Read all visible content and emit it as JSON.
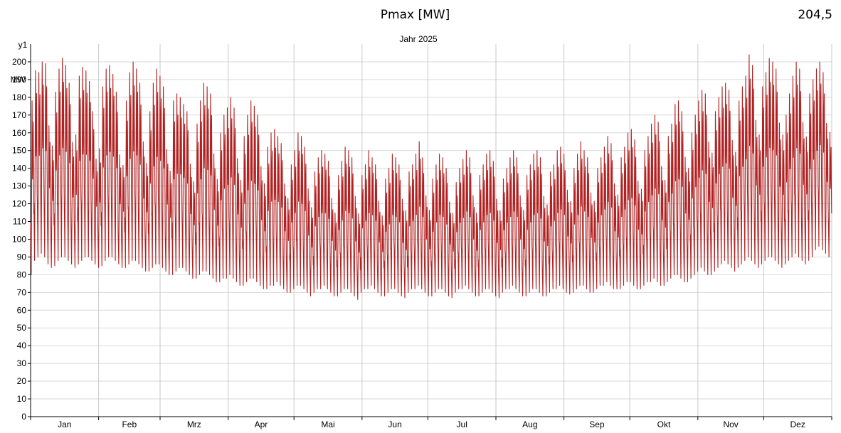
{
  "header": {
    "title": "Pmax [MW]",
    "max_value": "204,5"
  },
  "chart_data": {
    "type": "line",
    "title": "Jahr 2025",
    "y_axis_name": "y1",
    "y_unit": "MW",
    "ylim": [
      0,
      210
    ],
    "y_ticks": [
      0,
      10,
      20,
      30,
      40,
      50,
      60,
      70,
      80,
      90,
      100,
      110,
      120,
      130,
      140,
      150,
      160,
      170,
      180,
      190,
      200
    ],
    "x_ticks": [
      "Jan",
      "Feb",
      "Mrz",
      "Apr",
      "Mai",
      "Jun",
      "Jul",
      "Aug",
      "Sep",
      "Okt",
      "Nov",
      "Dez"
    ],
    "grid": true,
    "series": [
      {
        "color": "#b22222",
        "resolution": "hourly (approximated as daily min/max envelope)",
        "daily_max": [
          178,
          195,
          194,
          200,
          199,
          186,
          172,
          183,
          196,
          202,
          198,
          188,
          174,
          180,
          192,
          197,
          195,
          189,
          172,
          162,
          170,
          186,
          196,
          198,
          193,
          183,
          165,
          158,
          178,
          194,
          200,
          196,
          188,
          175,
          160,
          172,
          188,
          196,
          192,
          186,
          170,
          155,
          178,
          182,
          180,
          176,
          172,
          160,
          148,
          165,
          178,
          188,
          186,
          182,
          168,
          150,
          160,
          170,
          174,
          180,
          174,
          165,
          150,
          158,
          170,
          178,
          175,
          170,
          160,
          148,
          152,
          160,
          162,
          158,
          154,
          148,
          138,
          142,
          150,
          160,
          158,
          152,
          145,
          132,
          138,
          146,
          150,
          148,
          144,
          138,
          128,
          136,
          144,
          152,
          150,
          146,
          140,
          128,
          136,
          142,
          150,
          146,
          142,
          136,
          126,
          134,
          140,
          148,
          146,
          142,
          138,
          130,
          138,
          142,
          148,
          155,
          146,
          140,
          130,
          134,
          142,
          148,
          146,
          140,
          136,
          128,
          132,
          140,
          145,
          150,
          146,
          140,
          128,
          136,
          142,
          148,
          150,
          144,
          138,
          130,
          134,
          140,
          146,
          150,
          146,
          140,
          130,
          136,
          142,
          148,
          150,
          146,
          140,
          134,
          138,
          142,
          150,
          152,
          148,
          144,
          136,
          140,
          148,
          155,
          150,
          146,
          142,
          136,
          140,
          146,
          152,
          158,
          154,
          148,
          140,
          146,
          152,
          160,
          162,
          156,
          150,
          144,
          150,
          158,
          165,
          170,
          166,
          160,
          150,
          158,
          165,
          176,
          178,
          172,
          166,
          158,
          160,
          170,
          178,
          184,
          182,
          176,
          168,
          172,
          180,
          186,
          188,
          184,
          176,
          168,
          178,
          186,
          192,
          204,
          198,
          190,
          180,
          186,
          194,
          202,
          200,
          196,
          188,
          180,
          170,
          182,
          192,
          200,
          196,
          188,
          178,
          182,
          190,
          196,
          200,
          194,
          186,
          180
        ],
        "daily_min": [
          80,
          88,
          90,
          92,
          90,
          86,
          84,
          85,
          88,
          90,
          90,
          88,
          86,
          84,
          86,
          88,
          90,
          90,
          88,
          86,
          84,
          85,
          88,
          90,
          90,
          88,
          86,
          84,
          84,
          86,
          88,
          88,
          86,
          84,
          82,
          82,
          84,
          86,
          86,
          84,
          82,
          80,
          80,
          82,
          84,
          84,
          82,
          80,
          78,
          78,
          80,
          82,
          82,
          80,
          78,
          76,
          76,
          78,
          78,
          80,
          78,
          76,
          74,
          74,
          76,
          78,
          78,
          76,
          74,
          72,
          72,
          74,
          74,
          76,
          74,
          72,
          70,
          70,
          72,
          74,
          74,
          72,
          70,
          68,
          70,
          72,
          72,
          74,
          72,
          70,
          68,
          68,
          70,
          72,
          72,
          70,
          68,
          66,
          70,
          72,
          72,
          74,
          72,
          70,
          68,
          68,
          70,
          72,
          72,
          70,
          68,
          67,
          70,
          72,
          72,
          74,
          72,
          70,
          68,
          68,
          70,
          72,
          72,
          70,
          68,
          67,
          70,
          72,
          72,
          74,
          72,
          70,
          68,
          68,
          70,
          72,
          72,
          70,
          68,
          67,
          70,
          72,
          72,
          74,
          72,
          70,
          68,
          68,
          70,
          72,
          72,
          70,
          68,
          68,
          70,
          72,
          72,
          74,
          72,
          70,
          69,
          70,
          72,
          74,
          74,
          72,
          70,
          70,
          72,
          74,
          74,
          76,
          74,
          72,
          72,
          72,
          74,
          76,
          76,
          74,
          72,
          72,
          74,
          76,
          76,
          78,
          76,
          74,
          74,
          76,
          78,
          80,
          80,
          78,
          76,
          76,
          78,
          80,
          82,
          84,
          82,
          80,
          80,
          82,
          84,
          86,
          88,
          86,
          84,
          82,
          84,
          86,
          88,
          90,
          88,
          86,
          84,
          86,
          88,
          90,
          90,
          88,
          86,
          84,
          86,
          88,
          90,
          92,
          90,
          88,
          86,
          88,
          90,
          94,
          96,
          94,
          92,
          90
        ]
      }
    ]
  }
}
